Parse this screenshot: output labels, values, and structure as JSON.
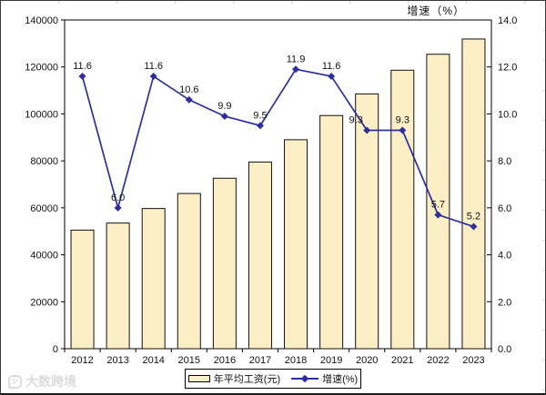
{
  "watermark": {
    "text": "大数跨境"
  },
  "chart_data": {
    "type": "combo",
    "title": "",
    "right_axis_title": "增速（%）",
    "categories": [
      "2012",
      "2013",
      "2014",
      "2015",
      "2016",
      "2017",
      "2018",
      "2019",
      "2020",
      "2021",
      "2022",
      "2023"
    ],
    "series": [
      {
        "name": "年平均工资(元)",
        "type": "bar",
        "axis": "left",
        "values": [
          50500,
          53500,
          59700,
          66100,
          72600,
          79500,
          89000,
          99300,
          108500,
          118600,
          125400,
          131900
        ]
      },
      {
        "name": "增速(%)",
        "type": "line",
        "axis": "right",
        "values": [
          11.6,
          6.0,
          11.6,
          10.6,
          9.9,
          9.5,
          11.9,
          11.6,
          9.3,
          9.3,
          5.7,
          5.2
        ]
      }
    ],
    "left_ylim": [
      0,
      140000
    ],
    "left_tick": 20000,
    "right_ylim": [
      0,
      14
    ],
    "right_tick": 2,
    "grid": false,
    "legend_position": "bottom",
    "colors": {
      "bar_fill": "#FCEFC6",
      "bar_stroke": "#111111",
      "line": "#2E2E9E",
      "text": "#111111"
    },
    "label_offsets": {
      "8": [
        -12,
        0
      ]
    }
  }
}
